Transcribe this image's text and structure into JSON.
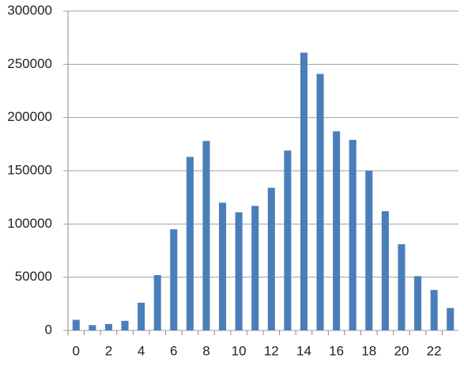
{
  "chart_data": {
    "type": "bar",
    "categories": [
      0,
      null,
      2,
      null,
      4,
      null,
      6,
      null,
      8,
      null,
      10,
      null,
      12,
      null,
      14,
      null,
      16,
      null,
      18,
      null,
      20,
      null,
      22,
      null
    ],
    "values": [
      10000,
      5000,
      6000,
      9000,
      26000,
      52000,
      95000,
      163000,
      178000,
      120000,
      111000,
      117000,
      134000,
      169000,
      261000,
      241000,
      187000,
      179000,
      150000,
      112000,
      81000,
      51000,
      38000,
      21000
    ],
    "color": "#4a7ebb",
    "ylim": [
      0,
      300000
    ],
    "yticks": [
      0,
      50000,
      100000,
      150000,
      200000,
      250000,
      300000
    ],
    "grid": true
  }
}
